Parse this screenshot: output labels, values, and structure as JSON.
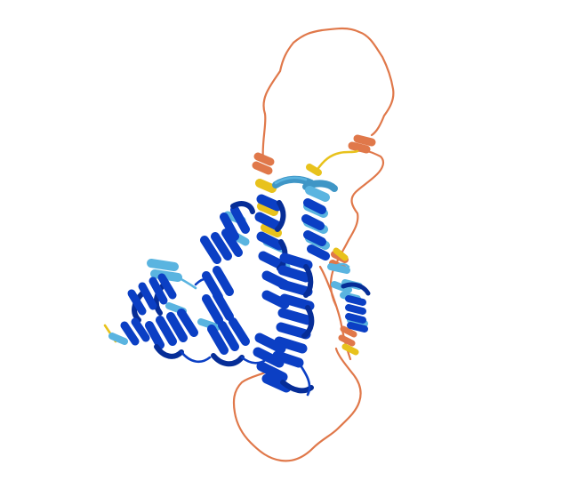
{
  "structure": {
    "kind": "protein-ribbon-cartoon",
    "background": "#ffffff",
    "palette": {
      "very_high": "#0b3fc4",
      "very_high_dark": "#062d97",
      "confident": "#5ab4e0",
      "confident_dark": "#3f96c6",
      "low": "#e8c21c",
      "very_low": "#e0784a",
      "very_low_dark": "#c85a2f"
    },
    "icon": "protein-structure-icon"
  }
}
